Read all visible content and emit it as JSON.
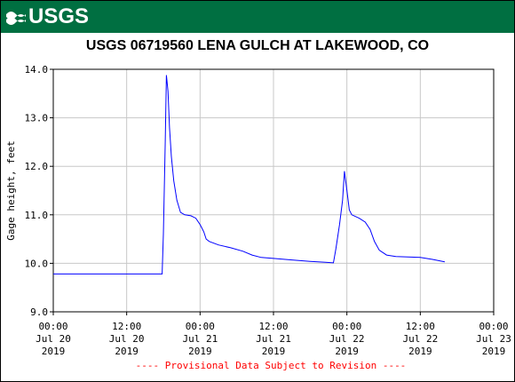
{
  "header": {
    "logo_text": "USGS",
    "logo_icon": "usgs-wave-icon"
  },
  "chart_data": {
    "type": "line",
    "title": "USGS 06719560 LENA GULCH AT LAKEWOOD, CO",
    "xlabel": "",
    "ylabel": "Gage height, feet",
    "ylim": [
      9.0,
      14.0
    ],
    "yticks": [
      "9.0",
      "10.0",
      "11.0",
      "12.0",
      "13.0",
      "14.0"
    ],
    "xlim_hours": [
      0,
      72
    ],
    "xticks": [
      {
        "hours": 0,
        "line1": "00:00",
        "line2": "Jul 20",
        "line3": "2019"
      },
      {
        "hours": 12,
        "line1": "12:00",
        "line2": "Jul 20",
        "line3": "2019"
      },
      {
        "hours": 24,
        "line1": "00:00",
        "line2": "Jul 21",
        "line3": "2019"
      },
      {
        "hours": 36,
        "line1": "12:00",
        "line2": "Jul 21",
        "line3": "2019"
      },
      {
        "hours": 48,
        "line1": "00:00",
        "line2": "Jul 22",
        "line3": "2019"
      },
      {
        "hours": 60,
        "line1": "12:00",
        "line2": "Jul 22",
        "line3": "2019"
      },
      {
        "hours": 72,
        "line1": "00:00",
        "line2": "Jul 23",
        "line3": "2019"
      }
    ],
    "grid": true,
    "line_color": "#0000ff",
    "series": [
      {
        "points": [
          [
            0,
            9.78
          ],
          [
            17.8,
            9.78
          ],
          [
            18.0,
            10.6
          ],
          [
            18.3,
            12.5
          ],
          [
            18.5,
            13.88
          ],
          [
            18.75,
            13.55
          ],
          [
            19.0,
            12.8
          ],
          [
            19.3,
            12.2
          ],
          [
            19.7,
            11.7
          ],
          [
            20.2,
            11.3
          ],
          [
            20.8,
            11.05
          ],
          [
            21.5,
            11.0
          ],
          [
            22.5,
            10.98
          ],
          [
            23.3,
            10.93
          ],
          [
            24.0,
            10.8
          ],
          [
            24.6,
            10.65
          ],
          [
            25.0,
            10.5
          ],
          [
            25.5,
            10.45
          ],
          [
            27.0,
            10.38
          ],
          [
            29.0,
            10.32
          ],
          [
            31.0,
            10.25
          ],
          [
            32.5,
            10.17
          ],
          [
            34.0,
            10.12
          ],
          [
            36.0,
            10.1
          ],
          [
            39.0,
            10.07
          ],
          [
            42.0,
            10.04
          ],
          [
            44.5,
            10.02
          ],
          [
            45.8,
            10.01
          ],
          [
            46.2,
            10.3
          ],
          [
            46.8,
            10.8
          ],
          [
            47.3,
            11.3
          ],
          [
            47.6,
            11.9
          ],
          [
            48.0,
            11.5
          ],
          [
            48.4,
            11.1
          ],
          [
            48.8,
            11.0
          ],
          [
            50.0,
            10.93
          ],
          [
            51.0,
            10.85
          ],
          [
            51.8,
            10.7
          ],
          [
            52.5,
            10.45
          ],
          [
            53.3,
            10.27
          ],
          [
            54.5,
            10.17
          ],
          [
            56.0,
            10.14
          ],
          [
            58.0,
            10.13
          ],
          [
            60.0,
            10.12
          ],
          [
            62.0,
            10.08
          ],
          [
            64.0,
            10.03
          ]
        ]
      }
    ],
    "footer_note": "---- Provisional Data Subject to Revision ----"
  }
}
